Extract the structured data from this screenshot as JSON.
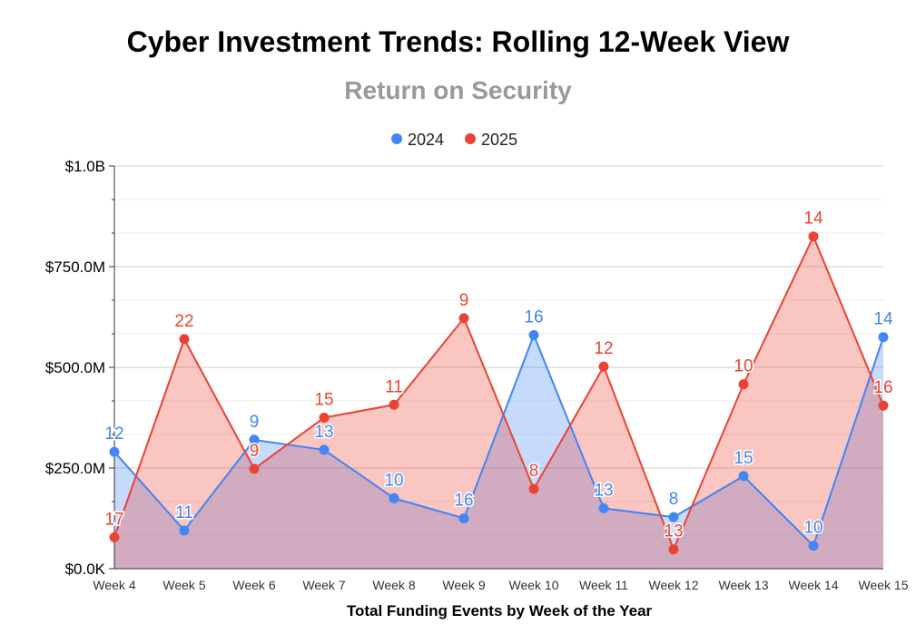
{
  "chart_data": {
    "type": "area",
    "title": "Cyber Investment Trends: Rolling 12-Week View",
    "subtitle": "Return on Security",
    "xlabel": "Total Funding Events by Week of the Year",
    "ylabel": "",
    "categories": [
      "Week 4",
      "Week 5",
      "Week 6",
      "Week 7",
      "Week 8",
      "Week 9",
      "Week 10",
      "Week 11",
      "Week 12",
      "Week 13",
      "Week 14",
      "Week 15"
    ],
    "ylim": [
      0,
      1000
    ],
    "y_ticks": [
      0,
      250,
      500,
      750,
      1000
    ],
    "y_tick_labels": [
      "$0.0K",
      "$250.0M",
      "$500.0M",
      "$750.0M",
      "$1.0B"
    ],
    "series": [
      {
        "name": "2024",
        "color": "#4285f4",
        "values": [
          290,
          95,
          320,
          295,
          175,
          125,
          580,
          150,
          128,
          230,
          57,
          575
        ],
        "labels": [
          "12",
          "11",
          "9",
          "13",
          "10",
          "16",
          "16",
          "13",
          "8",
          "15",
          "10",
          "14"
        ]
      },
      {
        "name": "2025",
        "color": "#ea4335",
        "values": [
          78,
          570,
          248,
          375,
          407,
          622,
          198,
          502,
          48,
          458,
          825,
          405
        ],
        "labels": [
          "17",
          "22",
          "9",
          "15",
          "11",
          "9",
          "8",
          "12",
          "13",
          "10",
          "14",
          "16"
        ]
      }
    ],
    "legend_position": "top",
    "grid": true
  }
}
